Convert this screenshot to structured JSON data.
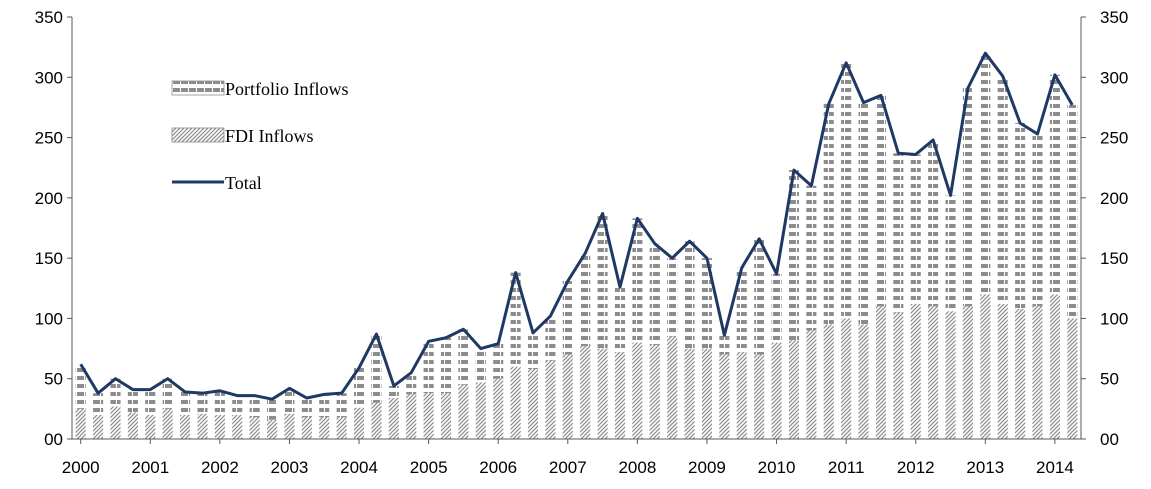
{
  "chart_data": {
    "type": "bar",
    "title": "",
    "xlabel": "",
    "ylabel": "",
    "ylim": [
      0,
      350
    ],
    "y_ticks": [
      "00",
      "50",
      "100",
      "150",
      "200",
      "250",
      "300",
      "350"
    ],
    "y_tick_values": [
      0,
      50,
      100,
      150,
      200,
      250,
      300,
      350
    ],
    "x_tick_labels": [
      "2000",
      "2001",
      "2002",
      "2003",
      "2004",
      "2005",
      "2006",
      "2007",
      "2008",
      "2009",
      "2010",
      "2011",
      "2012",
      "2013",
      "2014"
    ],
    "grid": false,
    "legend_placement": "top-left",
    "stacked": true,
    "categories": [
      "2000Q1",
      "2000Q2",
      "2000Q3",
      "2000Q4",
      "2001Q1",
      "2001Q2",
      "2001Q3",
      "2001Q4",
      "2002Q1",
      "2002Q2",
      "2002Q3",
      "2002Q4",
      "2003Q1",
      "2003Q2",
      "2003Q3",
      "2003Q4",
      "2004Q1",
      "2004Q2",
      "2004Q3",
      "2004Q4",
      "2005Q1",
      "2005Q2",
      "2005Q3",
      "2005Q4",
      "2006Q1",
      "2006Q2",
      "2006Q3",
      "2006Q4",
      "2007Q1",
      "2007Q2",
      "2007Q3",
      "2007Q4",
      "2008Q1",
      "2008Q2",
      "2008Q3",
      "2008Q4",
      "2009Q1",
      "2009Q2",
      "2009Q3",
      "2009Q4",
      "2010Q1",
      "2010Q2",
      "2010Q3",
      "2010Q4",
      "2011Q1",
      "2011Q2",
      "2011Q3",
      "2011Q4",
      "2012Q1",
      "2012Q2",
      "2012Q3",
      "2012Q4",
      "2013Q1",
      "2013Q2",
      "2013Q3",
      "2013Q4",
      "2014Q1",
      "2014Q2"
    ],
    "series": [
      {
        "name": "FDI Inflows",
        "values": [
          25,
          20,
          27,
          22,
          20,
          25,
          20,
          21,
          20,
          20,
          18,
          16,
          21,
          18,
          18,
          18,
          26,
          30,
          34,
          37,
          38,
          38,
          45,
          47,
          50,
          60,
          58,
          65,
          70,
          77,
          75,
          72,
          80,
          78,
          85,
          75,
          75,
          70,
          72,
          70,
          80,
          82,
          90,
          95,
          100,
          95,
          110,
          105,
          112,
          110,
          106,
          110,
          120,
          112,
          108,
          110,
          120,
          100
        ]
      },
      {
        "name": "Portfolio Inflows",
        "values": [
          37,
          18,
          23,
          19,
          21,
          25,
          19,
          17,
          20,
          16,
          18,
          17,
          21,
          16,
          19,
          20,
          33,
          57,
          10,
          18,
          43,
          46,
          46,
          28,
          29,
          78,
          30,
          37,
          61,
          77,
          112,
          54,
          103,
          84,
          65,
          89,
          75,
          16,
          70,
          96,
          57,
          141,
          120,
          183,
          212,
          184,
          175,
          132,
          124,
          138,
          96,
          181,
          200,
          189,
          154,
          143,
          182,
          177
        ]
      },
      {
        "name": "Total",
        "values": [
          62,
          38,
          50,
          41,
          41,
          50,
          39,
          38,
          40,
          36,
          36,
          33,
          42,
          34,
          37,
          38,
          59,
          87,
          44,
          55,
          81,
          84,
          91,
          75,
          79,
          138,
          88,
          102,
          131,
          154,
          187,
          126,
          183,
          162,
          150,
          164,
          150,
          86,
          142,
          166,
          137,
          223,
          210,
          278,
          312,
          279,
          285,
          237,
          236,
          248,
          202,
          291,
          320,
          301,
          262,
          253,
          302,
          277
        ]
      }
    ],
    "colors": {
      "total_line": "#1f3864",
      "bar_gray": "#8c8c8c",
      "axis": "#595959"
    }
  }
}
